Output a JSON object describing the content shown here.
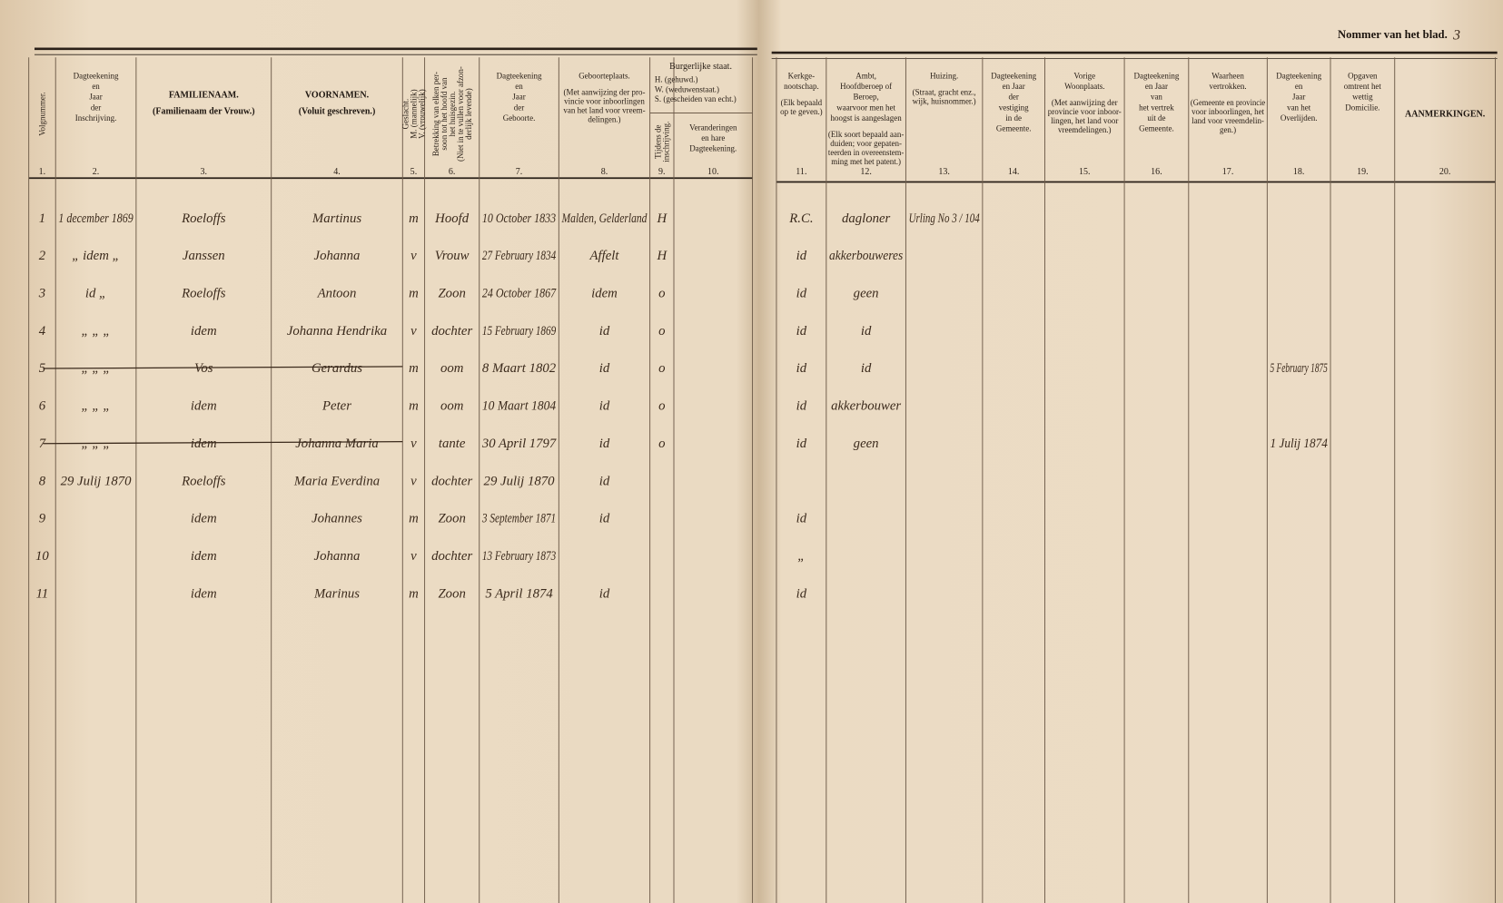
{
  "header": {
    "sheet_label": "Nommer van het blad.",
    "sheet_number": "3"
  },
  "civil_state": {
    "title": "Burgerlijke staat.",
    "note": [
      "H. (gehuwd.)",
      "W. (weduwenstaat.)",
      "S. (gescheiden van echt.)"
    ]
  },
  "columns": [
    {
      "number": "1.",
      "title": [
        "Volgnummer."
      ]
    },
    {
      "number": "2.",
      "title": [
        "Dagteekening",
        "en",
        "Jaar",
        "der",
        "Inschrijving."
      ]
    },
    {
      "number": "3.",
      "title": [
        "FAMILIENAAM."
      ],
      "note": [
        "(Familienaam der Vrouw.)"
      ]
    },
    {
      "number": "4.",
      "title": [
        "VOORNAMEN."
      ],
      "note": [
        "(Voluit geschreven.)"
      ]
    },
    {
      "number": "5.",
      "title": [
        "Geslacht."
      ],
      "note": [
        "M. (mannelijk)",
        "V. (vrouwelijk)"
      ]
    },
    {
      "number": "6.",
      "title": [
        "Betrekking van elken per-",
        "soon tot het hoofd van",
        "het huisgezin.",
        "(Niet in te vullen voor afzon-",
        "derlijk levende)"
      ]
    },
    {
      "number": "7.",
      "title": [
        "Dagteekening",
        "en",
        "Jaar",
        "der",
        "Geboorte."
      ]
    },
    {
      "number": "8.",
      "title": [
        "Geboorteplaats."
      ],
      "note": [
        "(Met aanwijzing der pro-",
        "vincie voor inboorlingen",
        "van het land voor vreem-",
        "delingen.)"
      ]
    },
    {
      "number": "9.",
      "title": [
        "Tijdens de",
        "inschrijving."
      ]
    },
    {
      "number": "10.",
      "title": [
        "Veranderingen",
        "en hare",
        "Dagteekening."
      ]
    },
    {
      "number": "11.",
      "title": [
        "Kerkge-",
        "nootschap."
      ],
      "note": [
        "(Elk bepaald",
        "op te geven.)"
      ]
    },
    {
      "number": "12.",
      "title": [
        "Ambt,",
        "Hoofdberoep of",
        "Beroep,",
        "waarvoor men het",
        "hoogst is aangeslagen"
      ],
      "note": [
        "(Elk soort bepaald aan-",
        "duiden; voor gepaten-",
        "teerden in overeenstem-",
        "ming met het patent.)"
      ]
    },
    {
      "number": "13.",
      "title": [
        "Huizing."
      ],
      "note": [
        "(Straat, gracht enz.,",
        "wijk, huisnommer.)"
      ]
    },
    {
      "number": "14.",
      "title": [
        "Dagteekening",
        "en Jaar",
        "der",
        "vestiging",
        "in de",
        "Gemeente."
      ]
    },
    {
      "number": "15.",
      "title": [
        "Vorige",
        "Woonplaats."
      ],
      "note": [
        "(Met aanwijzing der",
        "provincie voor inboor-",
        "lingen, het land voor",
        "vreemdelingen.)"
      ]
    },
    {
      "number": "16.",
      "title": [
        "Dagteekening",
        "en Jaar",
        "van",
        "het vertrek",
        "uit de",
        "Gemeente."
      ]
    },
    {
      "number": "17.",
      "title": [
        "Waarheen",
        "vertrokken."
      ],
      "note": [
        "(Gemeente en provincie",
        "voor inboorlingen, het",
        "land voor vreemdelin-",
        "gen.)"
      ]
    },
    {
      "number": "18.",
      "title": [
        "Dagteekening",
        "en",
        "Jaar",
        "van het",
        "Overlijden."
      ]
    },
    {
      "number": "19.",
      "title": [
        "Opgaven",
        "omtrent het",
        "wettig",
        "Domicilie."
      ]
    },
    {
      "number": "20.",
      "title": [
        "AANMERKINGEN."
      ]
    }
  ],
  "rows": [
    {
      "cells": {
        "1": "1",
        "2": "1 december 1869",
        "3": "Roeloffs",
        "4": "Martinus",
        "5": "m",
        "6": "Hoofd",
        "7": "10 October 1833",
        "8": "Malden, Gelderland",
        "9": "H",
        "11": "R.C.",
        "12": "dagloner",
        "13": "Urling No 3 / 104"
      }
    },
    {
      "cells": {
        "1": "2",
        "2": "„ idem „",
        "3": "Janssen",
        "4": "Johanna",
        "5": "v",
        "6": "Vrouw",
        "7": "27 February 1834",
        "8": "Affelt",
        "9": "H",
        "11": "id",
        "12": "akkerbouweres"
      }
    },
    {
      "cells": {
        "1": "3",
        "2": "id „",
        "3": "Roeloffs",
        "4": "Antoon",
        "5": "m",
        "6": "Zoon",
        "7": "24 October 1867",
        "8": "idem",
        "9": "o",
        "11": "id",
        "12": "geen"
      }
    },
    {
      "cells": {
        "1": "4",
        "2": "„ „ „",
        "3": "idem",
        "4": "Johanna Hendrika",
        "5": "v",
        "6": "dochter",
        "7": "15 February 1869",
        "8": "id",
        "9": "o",
        "11": "id",
        "12": "id"
      }
    },
    {
      "struck": true,
      "cells": {
        "1": "5",
        "2": "„ „ „",
        "3": "Vos",
        "4": "Gerardus",
        "5": "m",
        "6": "oom",
        "7": "8 Maart 1802",
        "8": "id",
        "9": "o",
        "11": "id",
        "12": "id",
        "18": "5 February 1875"
      }
    },
    {
      "cells": {
        "1": "6",
        "2": "„ „ „",
        "3": "idem",
        "4": "Peter",
        "5": "m",
        "6": "oom",
        "7": "10 Maart 1804",
        "8": "id",
        "9": "o",
        "11": "id",
        "12": "akkerbouwer"
      }
    },
    {
      "struck": true,
      "cells": {
        "1": "7",
        "2": "„ „ „",
        "3": "idem",
        "4": "Johanna Maria",
        "5": "v",
        "6": "tante",
        "7": "30 April 1797",
        "8": "id",
        "9": "o",
        "11": "id",
        "12": "geen",
        "18": "1 Julij 1874"
      }
    },
    {
      "cells": {
        "1": "8",
        "2": "29 Julij 1870",
        "3": "Roeloffs",
        "4": "Maria Everdina",
        "5": "v",
        "6": "dochter",
        "7": "29 Julij 1870",
        "8": "id"
      }
    },
    {
      "cells": {
        "1": "9",
        "3": "idem",
        "4": "Johannes",
        "5": "m",
        "6": "Zoon",
        "7": "3 September 1871",
        "8": "id",
        "11": "id"
      }
    },
    {
      "cells": {
        "1": "10",
        "3": "idem",
        "4": "Johanna",
        "5": "v",
        "6": "dochter",
        "7": "13 February 1873",
        "11": "„"
      }
    },
    {
      "cells": {
        "1": "11",
        "3": "idem",
        "4": "Marinus",
        "5": "m",
        "6": "Zoon",
        "7": "5 April 1874",
        "8": "id",
        "11": "id"
      }
    }
  ]
}
